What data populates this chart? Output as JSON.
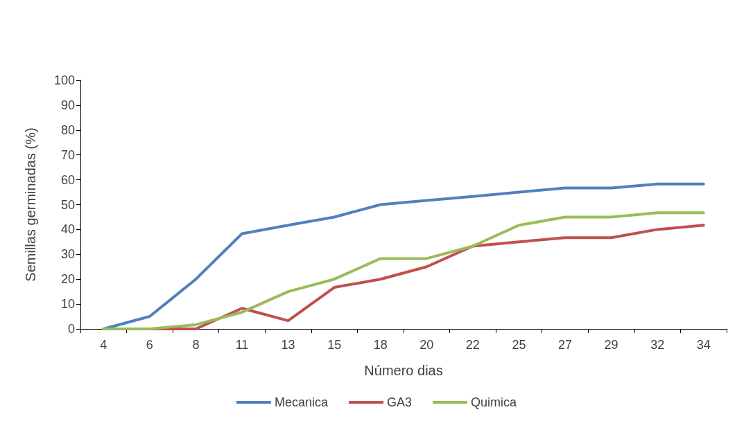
{
  "chart_data": {
    "type": "line",
    "xlabel": "Número dias",
    "ylabel": "Semillas germinadas (%)",
    "categories": [
      "4",
      "6",
      "8",
      "11",
      "13",
      "15",
      "18",
      "20",
      "22",
      "25",
      "27",
      "29",
      "32",
      "34"
    ],
    "series": [
      {
        "name": "Mecanica",
        "color": "#4f81bd",
        "values": [
          0,
          5,
          20,
          38.3,
          41.7,
          45,
          50,
          51.7,
          53.3,
          55,
          56.7,
          56.7,
          58.3,
          58.3
        ]
      },
      {
        "name": "GA3",
        "color": "#c0504d",
        "values": [
          0,
          0,
          0,
          8.3,
          3.3,
          16.7,
          20,
          25,
          33.3,
          35,
          36.7,
          36.7,
          40,
          41.7
        ]
      },
      {
        "name": "Quimica",
        "color": "#9bbb59",
        "values": [
          0,
          0,
          1.7,
          6.7,
          15,
          20,
          28.3,
          28.3,
          33.3,
          41.7,
          45,
          45,
          46.7,
          46.7
        ]
      }
    ],
    "ylim": [
      0,
      100
    ],
    "yticks": [
      0,
      10,
      20,
      30,
      40,
      50,
      60,
      70,
      80,
      90,
      100
    ],
    "grid": false,
    "legend": "bottom",
    "marker": "none",
    "line_style": "solid"
  }
}
